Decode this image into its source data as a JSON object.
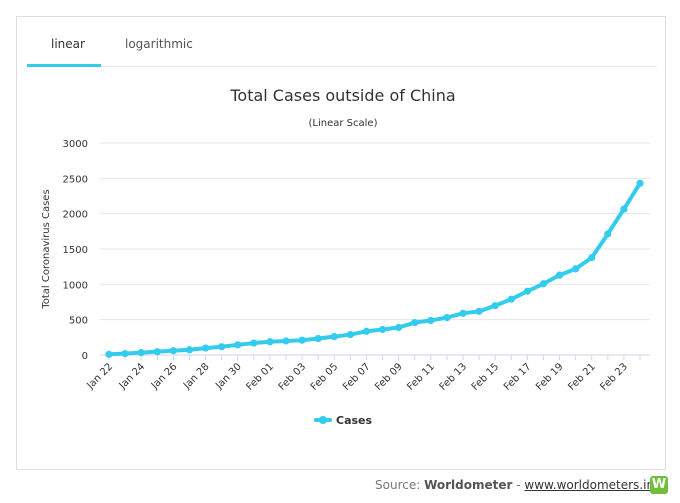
{
  "tabs": {
    "linear": "linear",
    "logarithmic": "logarithmic"
  },
  "source": {
    "prefix": "Source: ",
    "brand": "Worldometer",
    "separator": " - ",
    "link": "www.worldometers.info",
    "logo_letter": "W"
  },
  "colors": {
    "series": "#33ccee",
    "grid": "#e6e6e6",
    "text": "#333333"
  },
  "chart_data": {
    "type": "line",
    "title": "Total Cases outside of China",
    "subtitle": "(Linear Scale)",
    "xlabel": "",
    "ylabel": "Total Coronavirus Cases",
    "ylim": [
      0,
      3000
    ],
    "yticks": [
      0,
      500,
      1000,
      1500,
      2000,
      2500,
      3000
    ],
    "legend": "bottom-center",
    "grid": true,
    "x": [
      "Jan 22",
      "Jan 23",
      "Jan 24",
      "Jan 25",
      "Jan 26",
      "Jan 27",
      "Jan 28",
      "Jan 29",
      "Jan 30",
      "Jan 31",
      "Feb 01",
      "Feb 02",
      "Feb 03",
      "Feb 04",
      "Feb 05",
      "Feb 06",
      "Feb 07",
      "Feb 08",
      "Feb 09",
      "Feb 10",
      "Feb 11",
      "Feb 12",
      "Feb 13",
      "Feb 14",
      "Feb 15",
      "Feb 16",
      "Feb 17",
      "Feb 18",
      "Feb 19",
      "Feb 20",
      "Feb 21",
      "Feb 22",
      "Feb 23",
      "Feb 24"
    ],
    "xticks": [
      "Jan 22",
      "Jan 24",
      "Jan 26",
      "Jan 28",
      "Jan 30",
      "Feb 01",
      "Feb 03",
      "Feb 05",
      "Feb 07",
      "Feb 09",
      "Feb 11",
      "Feb 13",
      "Feb 15",
      "Feb 17",
      "Feb 19",
      "Feb 21",
      "Feb 23"
    ],
    "series": [
      {
        "name": "Cases",
        "values": [
          10,
          20,
          34,
          47,
          61,
          74,
          98,
          117,
          144,
          169,
          187,
          199,
          209,
          233,
          260,
          289,
          335,
          361,
          389,
          459,
          489,
          529,
          590,
          618,
          698,
          790,
          902,
          1008,
          1130,
          1219,
          1378,
          1713,
          2065,
          2430
        ]
      }
    ]
  }
}
